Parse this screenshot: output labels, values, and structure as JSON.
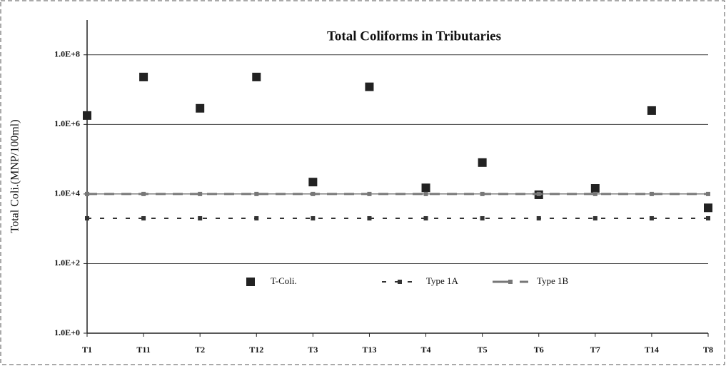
{
  "chart_data": {
    "type": "scatter",
    "title": "Total Coliforms in Tributaries",
    "ylabel": "Total Coli.(MNP/100ml)",
    "categories": [
      "T1",
      "T11",
      "T2",
      "T12",
      "T3",
      "T13",
      "T4",
      "T5",
      "T6",
      "T7",
      "T14",
      "T8"
    ],
    "series": [
      {
        "name": "T-Coli.",
        "color": "#222222",
        "style": "markers",
        "values": [
          1800000,
          23000000,
          2900000,
          23000000,
          22000,
          12000000,
          15000,
          80000,
          9500,
          14500,
          2500000,
          4000
        ]
      },
      {
        "name": "Type 1A",
        "color": "#333333",
        "style": "dashed",
        "values": [
          2000,
          2000,
          2000,
          2000,
          2000,
          2000,
          2000,
          2000,
          2000,
          2000,
          2000,
          2000
        ]
      },
      {
        "name": "Type 1B",
        "color": "#777777",
        "style": "thick-dashed",
        "values": [
          10000,
          10000,
          10000,
          10000,
          10000,
          10000,
          10000,
          10000,
          10000,
          10000,
          10000,
          10000
        ]
      }
    ],
    "log_y": true,
    "ylim": [
      1,
      1000000000
    ],
    "yticks": [
      {
        "value": 1,
        "label": "1.0E+0"
      },
      {
        "value": 100,
        "label": "1.0E+2"
      },
      {
        "value": 10000,
        "label": "1.0E+4"
      },
      {
        "value": 1000000,
        "label": "1.0E+6"
      },
      {
        "value": 100000000,
        "label": "1.0E+8"
      }
    ],
    "grid": true,
    "legend": "lower center"
  }
}
